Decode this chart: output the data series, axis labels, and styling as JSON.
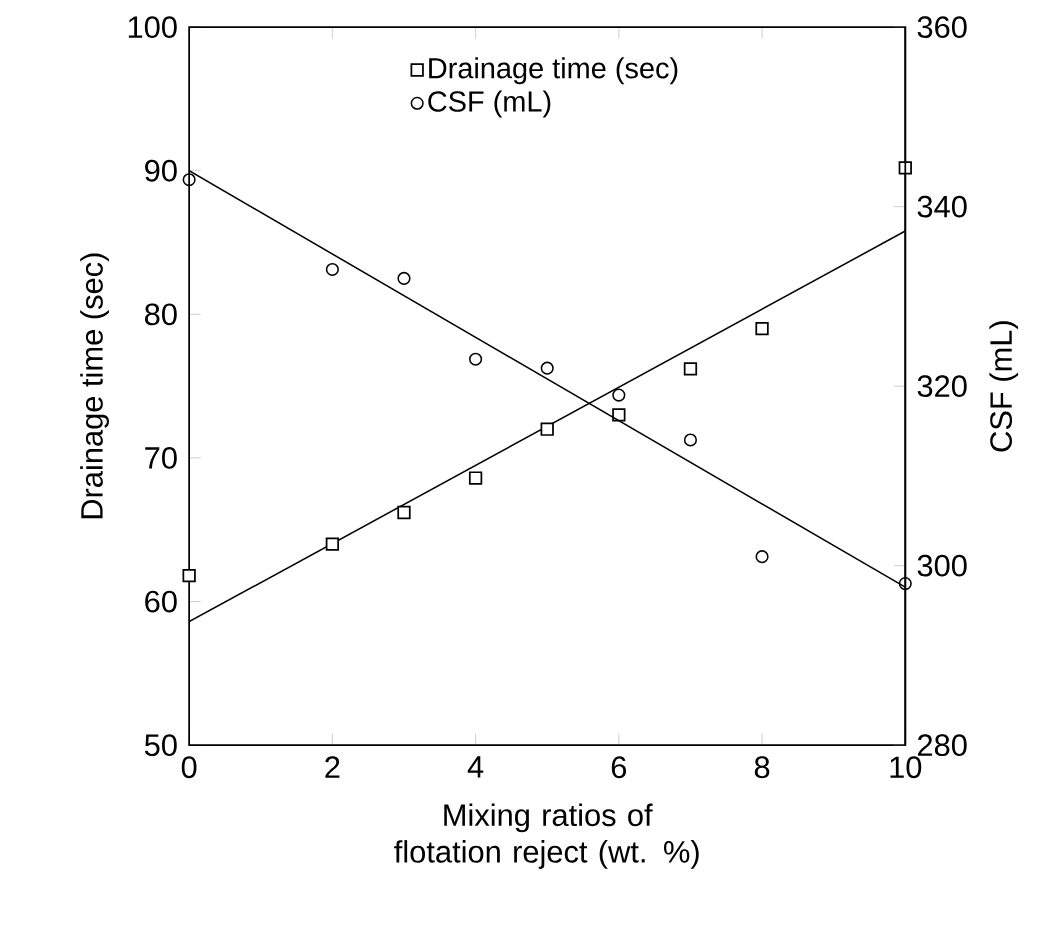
{
  "chart_data": {
    "type": "scatter",
    "xlabel": "Mixing ratios of flotation reject (wt. %)",
    "ylabel": "Drainage time (sec)",
    "y2label": "CSF (mL)",
    "xlim": [
      0,
      10
    ],
    "xticks": [
      0,
      2,
      4,
      6,
      8,
      10
    ],
    "ylim": [
      50,
      100
    ],
    "yticks": [
      50,
      60,
      70,
      80,
      90,
      100
    ],
    "y2lim": [
      280,
      360
    ],
    "y2ticks": [
      280,
      300,
      320,
      340,
      360
    ],
    "grid": false,
    "legend": "top",
    "series": [
      {
        "name": "Drainage time (sec)",
        "color": "#000000",
        "marker": "square",
        "x": [
          0,
          2,
          3,
          4,
          5,
          6,
          7,
          8,
          10
        ],
        "values": [
          61.8,
          64,
          66.2,
          68.6,
          72,
          73,
          76.2,
          79,
          90.2
        ]
      },
      {
        "name": "CSF (mL)",
        "color": "#000000",
        "marker": "circle",
        "axis": "y2",
        "x": [
          0,
          2,
          3,
          4,
          5,
          6,
          7,
          8,
          10
        ],
        "values": [
          343,
          333,
          332,
          323,
          322,
          319,
          314,
          301,
          298
        ]
      },
      {
        "type": "line",
        "color": "#000000",
        "marker": "none",
        "x": [
          0,
          10
        ],
        "values": [
          58.6,
          85.8
        ]
      },
      {
        "type": "line",
        "color": "#000000",
        "marker": "none",
        "axis": "y2",
        "x": [
          0,
          10
        ],
        "values": [
          344,
          297.6
        ]
      }
    ]
  }
}
